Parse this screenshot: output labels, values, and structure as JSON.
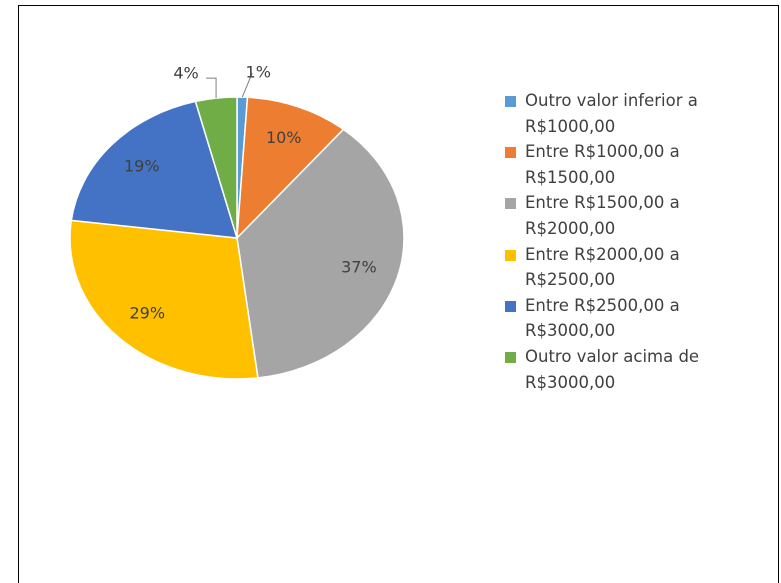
{
  "chart_data": {
    "type": "pie",
    "categories": [
      "Outro valor inferior a R$1000,00",
      "Entre R$1000,00 a R$1500,00",
      "Entre R$1500,00 a R$2000,00",
      "Entre R$2000,00 a R$2500,00",
      "Entre R$2500,00 a R$3000,00",
      "Outro valor acima de R$3000,00"
    ],
    "values": [
      1,
      10,
      37,
      29,
      19,
      4
    ],
    "value_labels": [
      "1%",
      "10%",
      "37%",
      "29%",
      "19%",
      "4%"
    ],
    "colors": [
      "#5b9bd5",
      "#ed7d31",
      "#a5a5a5",
      "#ffc000",
      "#4472c4",
      "#70ad47"
    ],
    "legend": "right"
  }
}
